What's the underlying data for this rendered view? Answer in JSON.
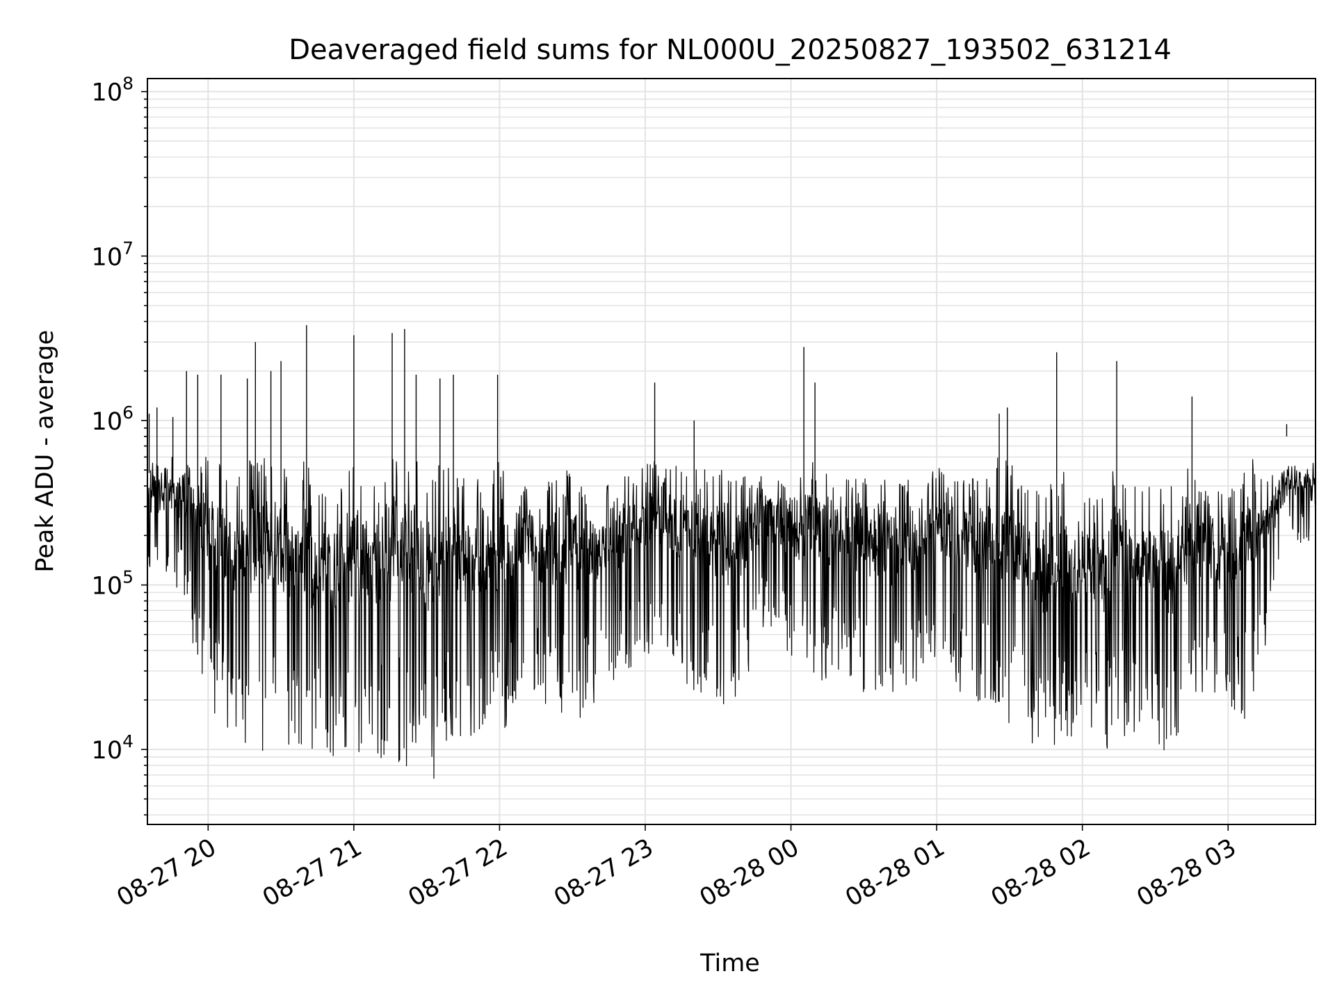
{
  "chart_data": {
    "type": "line",
    "title": "Deaveraged field sums for NL000U_20250827_193502_631214",
    "xlabel": "Time",
    "ylabel": "Peak ADU - average",
    "x_range": [
      "2025-08-27 19:35",
      "2025-08-28 03:36"
    ],
    "ylim": [
      3500,
      120000000
    ],
    "yscale": "log",
    "grid": true,
    "line_color": "#000000",
    "x_ticks": [
      {
        "label": "08-27 20",
        "t": "2025-08-27 20:00"
      },
      {
        "label": "08-27 21",
        "t": "2025-08-27 21:00"
      },
      {
        "label": "08-27 22",
        "t": "2025-08-27 22:00"
      },
      {
        "label": "08-27 23",
        "t": "2025-08-27 23:00"
      },
      {
        "label": "08-28 00",
        "t": "2025-08-28 00:00"
      },
      {
        "label": "08-28 01",
        "t": "2025-08-28 01:00"
      },
      {
        "label": "08-28 02",
        "t": "2025-08-28 02:00"
      },
      {
        "label": "08-28 03",
        "t": "2025-08-28 03:00"
      }
    ],
    "y_ticks": [
      {
        "base": "10",
        "exp": "4",
        "value": 10000
      },
      {
        "base": "10",
        "exp": "5",
        "value": 100000
      },
      {
        "base": "10",
        "exp": "6",
        "value": 1000000
      },
      {
        "base": "10",
        "exp": "7",
        "value": 10000000
      },
      {
        "base": "10",
        "exp": "8",
        "value": 100000000
      }
    ],
    "series": [
      {
        "x": [
          "2025-08-27 19:35",
          "2025-08-27 19:40",
          "2025-08-27 19:45",
          "2025-08-27 19:50",
          "2025-08-27 19:55",
          "2025-08-27 20:00",
          "2025-08-27 20:05",
          "2025-08-27 20:10",
          "2025-08-27 20:15",
          "2025-08-27 20:20",
          "2025-08-27 20:25",
          "2025-08-27 20:30",
          "2025-08-27 20:35",
          "2025-08-27 20:40",
          "2025-08-27 20:45",
          "2025-08-27 20:50",
          "2025-08-27 20:55",
          "2025-08-27 21:00",
          "2025-08-27 21:05",
          "2025-08-27 21:10",
          "2025-08-27 21:15",
          "2025-08-27 21:20",
          "2025-08-27 21:25",
          "2025-08-27 21:30",
          "2025-08-27 21:35",
          "2025-08-27 21:40",
          "2025-08-27 21:45",
          "2025-08-27 21:50",
          "2025-08-27 21:55",
          "2025-08-27 22:00",
          "2025-08-27 22:05",
          "2025-08-27 22:10",
          "2025-08-27 22:15",
          "2025-08-27 22:20",
          "2025-08-27 22:25",
          "2025-08-27 22:30",
          "2025-08-27 22:35",
          "2025-08-27 22:40",
          "2025-08-27 22:45",
          "2025-08-27 22:50",
          "2025-08-27 22:55",
          "2025-08-27 23:00",
          "2025-08-27 23:05",
          "2025-08-27 23:10",
          "2025-08-27 23:15",
          "2025-08-27 23:20",
          "2025-08-27 23:25",
          "2025-08-27 23:30",
          "2025-08-27 23:35",
          "2025-08-27 23:40",
          "2025-08-27 23:45",
          "2025-08-27 23:50",
          "2025-08-27 23:55",
          "2025-08-28 00:00",
          "2025-08-28 00:05",
          "2025-08-28 00:10",
          "2025-08-28 00:15",
          "2025-08-28 00:20",
          "2025-08-28 00:25",
          "2025-08-28 00:30",
          "2025-08-28 00:35",
          "2025-08-28 00:40",
          "2025-08-28 00:45",
          "2025-08-28 00:50",
          "2025-08-28 00:55",
          "2025-08-28 01:00",
          "2025-08-28 01:05",
          "2025-08-28 01:10",
          "2025-08-28 01:15",
          "2025-08-28 01:20",
          "2025-08-28 01:25",
          "2025-08-28 01:30",
          "2025-08-28 01:35",
          "2025-08-28 01:40",
          "2025-08-28 01:45",
          "2025-08-28 01:50",
          "2025-08-28 01:55",
          "2025-08-28 02:00",
          "2025-08-28 02:05",
          "2025-08-28 02:10",
          "2025-08-28 02:15",
          "2025-08-28 02:20",
          "2025-08-28 02:25",
          "2025-08-28 02:30",
          "2025-08-28 02:35",
          "2025-08-28 02:40",
          "2025-08-28 02:45",
          "2025-08-28 02:50",
          "2025-08-28 02:55",
          "2025-08-28 03:00",
          "2025-08-28 03:05",
          "2025-08-28 03:10",
          "2025-08-28 03:15",
          "2025-08-28 03:20",
          "2025-08-28 03:25",
          "2025-08-28 03:30",
          "2025-08-28 03:36"
        ],
        "upper": [
          1100000,
          1200000,
          1050000,
          2000000,
          1900000,
          700000,
          1900000,
          400000,
          1800000,
          3000000,
          2000000,
          2300000,
          400000,
          3800000,
          400000,
          400000,
          400000,
          3300000,
          400000,
          400000,
          3400000,
          3600000,
          1900000,
          450000,
          1800000,
          1900000,
          450000,
          450000,
          450000,
          1900000,
          450000,
          450000,
          450000,
          450000,
          800000,
          450000,
          450000,
          450000,
          450000,
          450000,
          600000,
          550000,
          1700000,
          550000,
          550000,
          1000000,
          550000,
          550000,
          500000,
          500000,
          500000,
          500000,
          500000,
          500000,
          2800000,
          1700000,
          500000,
          450000,
          450000,
          450000,
          450000,
          450000,
          450000,
          450000,
          450000,
          550000,
          450000,
          450000,
          450000,
          450000,
          1100000,
          1200000,
          400000,
          400000,
          400000,
          2600000,
          400000,
          400000,
          400000,
          400000,
          2300000,
          400000,
          400000,
          400000,
          400000,
          400000,
          1400000,
          400000,
          400000,
          400000,
          450000,
          800000,
          450000,
          500000,
          950000,
          600000,
          550000
        ],
        "lower": [
          120000,
          100000,
          100000,
          80000,
          35000,
          20000,
          14000,
          12000,
          11000,
          10000,
          9000,
          8500,
          8000,
          9000,
          8000,
          7700,
          9000,
          10000,
          9000,
          8500,
          9000,
          8000,
          7500,
          5500,
          7000,
          10000,
          12000,
          11000,
          12000,
          9500,
          15000,
          25000,
          20000,
          18000,
          16000,
          15000,
          15000,
          20000,
          25000,
          28000,
          32000,
          35000,
          40000,
          35000,
          25000,
          22000,
          20000,
          20000,
          16000,
          20000,
          40000,
          60000,
          45000,
          35000,
          30000,
          28000,
          25000,
          30000,
          25000,
          22000,
          20000,
          18000,
          20000,
          25000,
          28000,
          28000,
          28000,
          22000,
          18000,
          20000,
          15000,
          12000,
          11000,
          10000,
          7000,
          9000,
          10000,
          12000,
          12000,
          10000,
          10000,
          12000,
          15000,
          12000,
          7500,
          12000,
          15000,
          20000,
          15000,
          18000,
          15000,
          16000,
          35000,
          100000,
          200000,
          180000,
          150000
        ]
      }
    ]
  }
}
